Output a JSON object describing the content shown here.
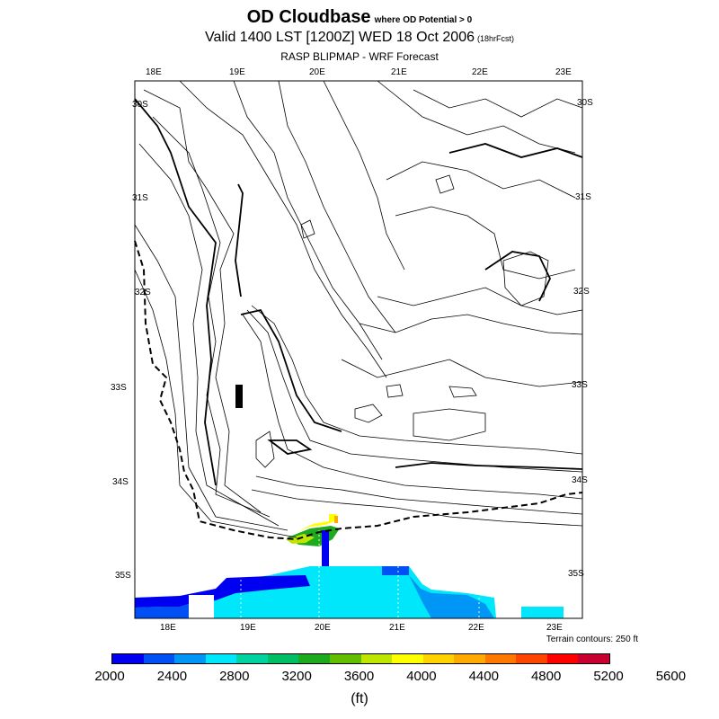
{
  "title": {
    "main": "OD Cloudbase",
    "qualifier": "where OD Potential > 0",
    "valid": "Valid 1400 LST [1200Z] WED 18 Oct 2006",
    "forecast": "(18hrFcst)",
    "model": "RASP BLIPMAP - WRF Forecast"
  },
  "map": {
    "lon_labels_top": [
      "18E",
      "19E",
      "20E",
      "21E",
      "22E",
      "23E"
    ],
    "lon_labels_bottom": [
      "18E",
      "19E",
      "20E",
      "21E",
      "22E",
      "23E"
    ],
    "lat_labels_left": [
      "30S",
      "31S",
      "32S",
      "33S",
      "34S",
      "35S"
    ],
    "lat_labels_right": [
      "30S",
      "31S",
      "32S",
      "33S",
      "34S",
      "35S"
    ],
    "terrain_note": "Terrain contours: 250 ft"
  },
  "legend": {
    "colors": [
      "#0000f0",
      "#0050f5",
      "#0096f5",
      "#00e6fa",
      "#00d2a0",
      "#00be64",
      "#1eaa1e",
      "#64be00",
      "#bee600",
      "#ffff00",
      "#ffd200",
      "#ffaa00",
      "#ff7800",
      "#ff4600",
      "#ff0000",
      "#c80032"
    ],
    "labels": [
      "2000",
      "2400",
      "2800",
      "3200",
      "3600",
      "4000",
      "4400",
      "4800",
      "5200",
      "5600"
    ],
    "units": "(ft)"
  }
}
